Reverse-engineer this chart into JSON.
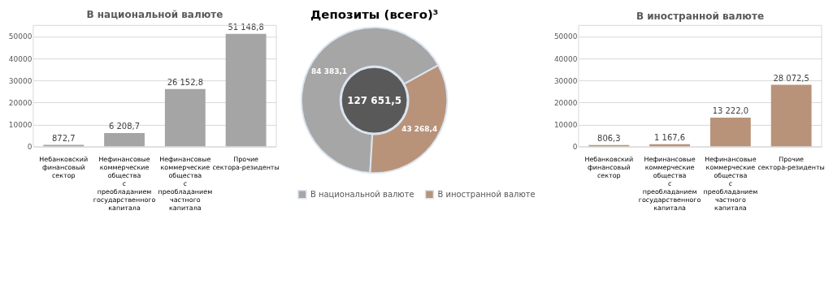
{
  "chart_data": [
    {
      "type": "bar",
      "title": "В национальной валюте",
      "categories": [
        "Небанковский финансовый сектор",
        "Нефинансовые коммерческие общества с преобладанием государственного капитала",
        "Нефинансовые коммерческие общества с преобладанием частного капитала",
        "Прочие сектора-резиденты"
      ],
      "values": [
        872.7,
        6208.7,
        26152.8,
        51148.8
      ],
      "value_labels": [
        "872,7",
        "6 208,7",
        "26 152,8",
        "51 148,8"
      ],
      "color": "#a5a5a5",
      "ylim": [
        0,
        55000
      ],
      "yticks": [
        0,
        10000,
        20000,
        30000,
        40000,
        50000
      ],
      "grid": "y"
    },
    {
      "type": "donut",
      "title": "Депозиты (всего)³",
      "categories": [
        "В национальной валюте",
        "В иностранной валюте"
      ],
      "values": [
        84383.1,
        43268.4
      ],
      "value_labels": [
        "84 383,1",
        "43 268,4"
      ],
      "colors": [
        "#a6a6a6",
        "#b8937a"
      ],
      "annotations": [
        "127 651,5"
      ],
      "legend": "bottom"
    },
    {
      "type": "bar",
      "title": "В иностранной валюте",
      "categories": [
        "Небанковский финансовый сектор",
        "Нефинансовые коммерческие общества с преобладанием государственного капитала",
        "Нефинансовые коммерческие общества с преобладанием частного капитала",
        "Прочие сектора-резиденты"
      ],
      "values": [
        806.3,
        1167.6,
        13222.0,
        28072.5
      ],
      "value_labels": [
        "806,3",
        "1 167,6",
        "13 222,0",
        "28 072,5"
      ],
      "color": "#b8937a",
      "ylim": [
        0,
        55000
      ],
      "yticks": [
        0,
        10000,
        20000,
        30000,
        40000,
        50000
      ],
      "grid": "y"
    }
  ]
}
